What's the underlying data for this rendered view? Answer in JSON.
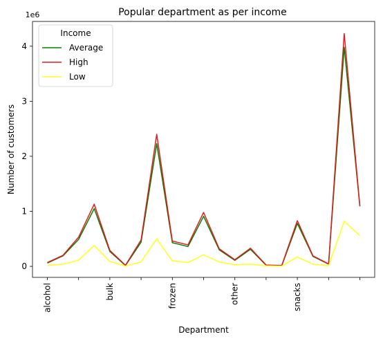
{
  "chart_data": {
    "type": "line",
    "title": "Popular department as per income",
    "xlabel": "Department",
    "ylabel": "Number of customers",
    "y_offset_label": "1e6",
    "y_scale": 1000000,
    "ylim": [
      -200000,
      4450000
    ],
    "yticks": [
      0,
      1000000,
      2000000,
      3000000,
      4000000
    ],
    "ytick_labels": [
      "0",
      "1",
      "2",
      "3",
      "4"
    ],
    "xlim": [
      -0.95,
      20.95
    ],
    "x_count": 21,
    "xticks": [
      0,
      2,
      4,
      6,
      8,
      10,
      12,
      14,
      16,
      18,
      20
    ],
    "xtick_labels": [
      "alcohol",
      "",
      "bulk",
      "",
      "frozen",
      "",
      "other",
      "",
      "snacks",
      "",
      ""
    ],
    "grid": false,
    "legend": {
      "title": "Income",
      "placement": "top-left"
    },
    "series": [
      {
        "name": "Average",
        "color": "#008000",
        "values": [
          60000,
          190000,
          490000,
          1050000,
          270000,
          15000,
          440000,
          2230000,
          430000,
          360000,
          910000,
          300000,
          110000,
          310000,
          20000,
          10000,
          780000,
          180000,
          40000,
          3980000,
          1090000
        ]
      },
      {
        "name": "High",
        "color": "#e41a1c",
        "values": [
          70000,
          200000,
          530000,
          1130000,
          290000,
          20000,
          480000,
          2400000,
          460000,
          390000,
          980000,
          320000,
          120000,
          330000,
          25000,
          15000,
          830000,
          190000,
          45000,
          4230000,
          1100000
        ]
      },
      {
        "name": "Low",
        "color": "#ffff1a",
        "values": [
          15000,
          40000,
          110000,
          380000,
          90000,
          5000,
          80000,
          500000,
          100000,
          70000,
          210000,
          80000,
          30000,
          40000,
          10000,
          5000,
          170000,
          40000,
          10000,
          820000,
          560000
        ]
      }
    ]
  }
}
